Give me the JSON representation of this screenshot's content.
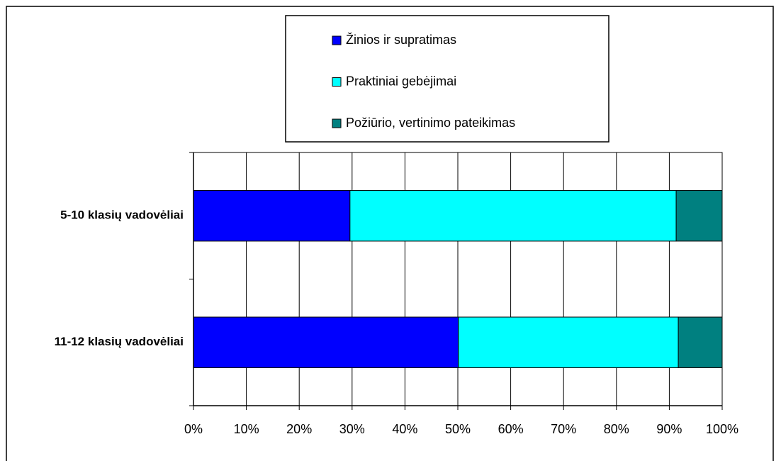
{
  "chart_data": {
    "type": "stacked_barh",
    "categories": [
      "5-10 klasių vadovėliai",
      "11-12 klasių vadovėliai"
    ],
    "series": [
      {
        "name": "Žinios ir supratimas",
        "color": "#0000ff",
        "values": [
          29.6,
          50.1
        ]
      },
      {
        "name": "Praktiniai gebėjimai",
        "color": "#00ffff",
        "values": [
          61.7,
          41.6
        ]
      },
      {
        "name": "Požiūrio, vertinimo pateikimas",
        "color": "#008080",
        "values": [
          8.7,
          8.3
        ]
      }
    ],
    "xlim": [
      0,
      100
    ],
    "xticks": [
      {
        "value": 0,
        "label": "0%"
      },
      {
        "value": 10,
        "label": "10%"
      },
      {
        "value": 20,
        "label": "20%"
      },
      {
        "value": 30,
        "label": "30%"
      },
      {
        "value": 40,
        "label": "40%"
      },
      {
        "value": 50,
        "label": "50%"
      },
      {
        "value": 60,
        "label": "60%"
      },
      {
        "value": 70,
        "label": "70%"
      },
      {
        "value": 80,
        "label": "80%"
      },
      {
        "value": 90,
        "label": "90%"
      },
      {
        "value": 100,
        "label": "100%"
      }
    ],
    "grid": true
  }
}
